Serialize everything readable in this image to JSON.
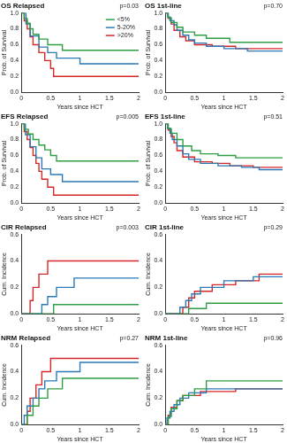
{
  "chart_data": [
    {
      "type": "step",
      "title": "OS Relapsed",
      "annotation": "p=0.03",
      "x_label": "Years since HCT",
      "y_label": "Prob. of Survival",
      "xlim": [
        0,
        2
      ],
      "xticks": [
        0,
        0.5,
        1,
        1.5,
        2
      ],
      "ylim": [
        0,
        1
      ],
      "yticks": [
        {
          "value": 0,
          "label": "0.0"
        },
        {
          "value": 0.2,
          "label": "0.2"
        },
        {
          "value": 0.4,
          "label": "0.4"
        },
        {
          "value": 0.6,
          "label": "0.6"
        },
        {
          "value": 0.8,
          "label": "0.8"
        },
        {
          "value": 1,
          "label": "1.0"
        }
      ],
      "legend": "upper right",
      "series": [
        {
          "name": "<5%",
          "color": "#2e9e44",
          "x": [
            0,
            0.05,
            0.1,
            0.15,
            0.2,
            0.3,
            0.45,
            0.7,
            2
          ],
          "values": [
            1,
            0.93,
            0.87,
            0.8,
            0.73,
            0.67,
            0.6,
            0.53,
            0.53
          ]
        },
        {
          "name": "5-20%",
          "color": "#2a7ab8",
          "x": [
            0,
            0.08,
            0.15,
            0.3,
            0.45,
            0.6,
            1.0,
            2
          ],
          "values": [
            1,
            0.86,
            0.71,
            0.57,
            0.5,
            0.43,
            0.36,
            0.36
          ]
        },
        {
          "name": ">20%",
          "color": "#d62728",
          "x": [
            0,
            0.05,
            0.1,
            0.15,
            0.2,
            0.3,
            0.4,
            0.5,
            0.55,
            2
          ],
          "values": [
            1,
            0.9,
            0.8,
            0.7,
            0.6,
            0.5,
            0.4,
            0.3,
            0.2,
            0.2
          ]
        }
      ]
    },
    {
      "type": "step",
      "title": "OS 1st-line",
      "annotation": "p=0.70",
      "x_label": "Years since HCT",
      "y_label": "Prob. of Survival",
      "xlim": [
        0,
        2
      ],
      "xticks": [
        0,
        0.5,
        1,
        1.5,
        2
      ],
      "ylim": [
        0,
        1
      ],
      "yticks": [
        {
          "value": 0,
          "label": "0.0"
        },
        {
          "value": 0.2,
          "label": "0.2"
        },
        {
          "value": 0.4,
          "label": "0.4"
        },
        {
          "value": 0.6,
          "label": "0.6"
        },
        {
          "value": 0.8,
          "label": "0.8"
        },
        {
          "value": 1,
          "label": "1.0"
        }
      ],
      "series": [
        {
          "name": "<5%",
          "color": "#2e9e44",
          "x": [
            0,
            0.05,
            0.1,
            0.2,
            0.3,
            0.5,
            0.7,
            1.1,
            2
          ],
          "values": [
            1,
            0.94,
            0.88,
            0.82,
            0.76,
            0.72,
            0.68,
            0.63,
            0.63
          ]
        },
        {
          "name": "5-20%",
          "color": "#2a7ab8",
          "x": [
            0,
            0.04,
            0.08,
            0.15,
            0.2,
            0.3,
            0.4,
            0.5,
            0.7,
            1,
            1.4,
            2
          ],
          "values": [
            1,
            0.95,
            0.9,
            0.85,
            0.78,
            0.72,
            0.66,
            0.62,
            0.58,
            0.55,
            0.52,
            0.52
          ]
        },
        {
          "name": ">20%",
          "color": "#d62728",
          "x": [
            0,
            0.05,
            0.1,
            0.15,
            0.25,
            0.35,
            0.5,
            0.8,
            1.2,
            2
          ],
          "values": [
            1,
            0.93,
            0.86,
            0.78,
            0.7,
            0.65,
            0.6,
            0.58,
            0.55,
            0.55
          ]
        }
      ]
    },
    {
      "type": "step",
      "title": "EFS Relapsed",
      "annotation": "p=0.005",
      "x_label": "Years since HCT",
      "y_label": "Prob. of Survival",
      "xlim": [
        0,
        2
      ],
      "xticks": [
        0,
        0.5,
        1,
        1.5,
        2
      ],
      "ylim": [
        0,
        1
      ],
      "yticks": [
        {
          "value": 0,
          "label": "0.0"
        },
        {
          "value": 0.2,
          "label": "0.2"
        },
        {
          "value": 0.4,
          "label": "0.4"
        },
        {
          "value": 0.6,
          "label": "0.6"
        },
        {
          "value": 0.8,
          "label": "0.8"
        },
        {
          "value": 1,
          "label": "1.0"
        }
      ],
      "series": [
        {
          "name": "<5%",
          "color": "#2e9e44",
          "x": [
            0,
            0.05,
            0.12,
            0.2,
            0.3,
            0.4,
            0.5,
            0.6,
            2
          ],
          "values": [
            1,
            0.93,
            0.87,
            0.8,
            0.73,
            0.67,
            0.6,
            0.53,
            0.53
          ]
        },
        {
          "name": "5-20%",
          "color": "#2a7ab8",
          "x": [
            0,
            0.07,
            0.15,
            0.25,
            0.35,
            0.5,
            0.7,
            2
          ],
          "values": [
            1,
            0.86,
            0.71,
            0.57,
            0.43,
            0.36,
            0.27,
            0.27
          ]
        },
        {
          "name": ">20%",
          "color": "#d62728",
          "x": [
            0,
            0.05,
            0.1,
            0.15,
            0.2,
            0.25,
            0.3,
            0.35,
            0.45,
            0.55,
            2
          ],
          "values": [
            1,
            0.9,
            0.8,
            0.7,
            0.6,
            0.5,
            0.4,
            0.3,
            0.2,
            0.1,
            0.1
          ]
        }
      ]
    },
    {
      "type": "step",
      "title": "EFS 1st-line",
      "annotation": "p=0.51",
      "x_label": "Years since HCT",
      "y_label": "Prob. of Survival",
      "xlim": [
        0,
        2
      ],
      "xticks": [
        0,
        0.5,
        1,
        1.5,
        2
      ],
      "ylim": [
        0,
        1
      ],
      "yticks": [
        {
          "value": 0,
          "label": "0.0"
        },
        {
          "value": 0.2,
          "label": "0.2"
        },
        {
          "value": 0.4,
          "label": "0.4"
        },
        {
          "value": 0.6,
          "label": "0.6"
        },
        {
          "value": 0.8,
          "label": "0.8"
        },
        {
          "value": 1,
          "label": "1.0"
        }
      ],
      "series": [
        {
          "name": "<5%",
          "color": "#2e9e44",
          "x": [
            0,
            0.05,
            0.1,
            0.2,
            0.3,
            0.45,
            0.6,
            0.9,
            1.2,
            2
          ],
          "values": [
            1,
            0.94,
            0.88,
            0.8,
            0.72,
            0.66,
            0.62,
            0.6,
            0.57,
            0.57
          ]
        },
        {
          "name": "5-20%",
          "color": "#2a7ab8",
          "x": [
            0,
            0.04,
            0.08,
            0.12,
            0.2,
            0.3,
            0.4,
            0.6,
            0.9,
            1.3,
            1.6,
            2
          ],
          "values": [
            1,
            0.94,
            0.88,
            0.8,
            0.72,
            0.62,
            0.55,
            0.5,
            0.47,
            0.45,
            0.42,
            0.42
          ]
        },
        {
          "name": ">20%",
          "color": "#d62728",
          "x": [
            0,
            0.05,
            0.1,
            0.15,
            0.2,
            0.3,
            0.5,
            0.8,
            1.1,
            1.5,
            2
          ],
          "values": [
            1,
            0.92,
            0.84,
            0.76,
            0.66,
            0.58,
            0.52,
            0.5,
            0.47,
            0.45,
            0.45
          ]
        }
      ]
    },
    {
      "type": "step",
      "title": "CIR Relapsed",
      "annotation": "p=0.003",
      "x_label": "Years since HCT",
      "y_label": "Cum. Incidence",
      "xlim": [
        0,
        2
      ],
      "xticks": [
        0,
        0.5,
        1,
        1.5,
        2
      ],
      "ylim": [
        0,
        0.6
      ],
      "yticks": [
        {
          "value": 0,
          "label": "0.0"
        },
        {
          "value": 0.2,
          "label": "0.2"
        },
        {
          "value": 0.4,
          "label": "0.4"
        },
        {
          "value": 0.6,
          "label": "0.6"
        }
      ],
      "series": [
        {
          "name": "<5%",
          "color": "#2e9e44",
          "x": [
            0,
            0.55,
            2
          ],
          "values": [
            0,
            0.07,
            0.07
          ]
        },
        {
          "name": "5-20%",
          "color": "#2a7ab8",
          "x": [
            0,
            0.35,
            0.45,
            0.6,
            0.9,
            2
          ],
          "values": [
            0,
            0.07,
            0.13,
            0.2,
            0.27,
            0.27
          ]
        },
        {
          "name": ">20%",
          "color": "#d62728",
          "x": [
            0,
            0.15,
            0.2,
            0.3,
            0.45,
            2
          ],
          "values": [
            0,
            0.1,
            0.2,
            0.3,
            0.4,
            0.4
          ]
        }
      ]
    },
    {
      "type": "step",
      "title": "CIR 1st-line",
      "annotation": "p=0.29",
      "x_label": "Years since HCT",
      "y_label": "Cum. Incidence",
      "xlim": [
        0,
        2
      ],
      "xticks": [
        0,
        0.5,
        1,
        1.5,
        2
      ],
      "ylim": [
        0,
        0.6
      ],
      "yticks": [
        {
          "value": 0,
          "label": "0.0"
        },
        {
          "value": 0.2,
          "label": "0.2"
        },
        {
          "value": 0.4,
          "label": "0.4"
        },
        {
          "value": 0.6,
          "label": "0.6"
        }
      ],
      "series": [
        {
          "name": "<5%",
          "color": "#2e9e44",
          "x": [
            0,
            0.4,
            0.7,
            2
          ],
          "values": [
            0,
            0.04,
            0.08,
            0.08
          ]
        },
        {
          "name": "5-20%",
          "color": "#2a7ab8",
          "x": [
            0,
            0.25,
            0.35,
            0.45,
            0.6,
            1,
            1.5,
            2
          ],
          "values": [
            0,
            0.05,
            0.1,
            0.15,
            0.2,
            0.25,
            0.28,
            0.28
          ]
        },
        {
          "name": ">20%",
          "color": "#d62728",
          "x": [
            0,
            0.3,
            0.4,
            0.5,
            0.8,
            1.2,
            1.6,
            2
          ],
          "values": [
            0,
            0.05,
            0.12,
            0.17,
            0.22,
            0.25,
            0.3,
            0.3
          ]
        }
      ]
    },
    {
      "type": "step",
      "title": "NRM Relapsed",
      "annotation": "p=0.27",
      "x_label": "Years since HCT",
      "y_label": "Cum. Incidence",
      "xlim": [
        0,
        2
      ],
      "xticks": [
        0,
        0.5,
        1,
        1.5,
        2
      ],
      "ylim": [
        0,
        0.6
      ],
      "yticks": [
        {
          "value": 0,
          "label": "0.0"
        },
        {
          "value": 0.2,
          "label": "0.2"
        },
        {
          "value": 0.4,
          "label": "0.4"
        },
        {
          "value": 0.6,
          "label": "0.6"
        }
      ],
      "series": [
        {
          "name": "<5%",
          "color": "#2e9e44",
          "x": [
            0,
            0.1,
            0.2,
            0.3,
            0.45,
            0.7,
            2
          ],
          "values": [
            0,
            0.07,
            0.14,
            0.2,
            0.27,
            0.35,
            0.35
          ]
        },
        {
          "name": "5-20%",
          "color": "#2a7ab8",
          "x": [
            0,
            0.05,
            0.1,
            0.2,
            0.3,
            0.4,
            0.6,
            1,
            2
          ],
          "values": [
            0,
            0.07,
            0.14,
            0.2,
            0.27,
            0.33,
            0.4,
            0.47,
            0.47
          ]
        },
        {
          "name": ">20%",
          "color": "#d62728",
          "x": [
            0,
            0.1,
            0.15,
            0.25,
            0.35,
            0.5,
            2
          ],
          "values": [
            0,
            0.1,
            0.2,
            0.3,
            0.4,
            0.5,
            0.5
          ]
        }
      ]
    },
    {
      "type": "step",
      "title": "NRM 1st-line",
      "annotation": "p=0.96",
      "x_label": "Years since HCT",
      "y_label": "Cum. Incidence",
      "xlim": [
        0,
        2
      ],
      "xticks": [
        0,
        0.5,
        1,
        1.5,
        2
      ],
      "ylim": [
        0,
        0.6
      ],
      "yticks": [
        {
          "value": 0,
          "label": "0.0"
        },
        {
          "value": 0.2,
          "label": "0.2"
        },
        {
          "value": 0.4,
          "label": "0.4"
        },
        {
          "value": 0.6,
          "label": "0.6"
        }
      ],
      "series": [
        {
          "name": "<5%",
          "color": "#2e9e44",
          "x": [
            0,
            0.05,
            0.1,
            0.2,
            0.3,
            0.5,
            0.7,
            2
          ],
          "values": [
            0,
            0.06,
            0.12,
            0.18,
            0.22,
            0.27,
            0.33,
            0.33
          ]
        },
        {
          "name": "5-20%",
          "color": "#2a7ab8",
          "x": [
            0,
            0.03,
            0.08,
            0.15,
            0.25,
            0.4,
            0.7,
            2
          ],
          "values": [
            0,
            0.05,
            0.1,
            0.15,
            0.2,
            0.24,
            0.27,
            0.27
          ]
        },
        {
          "name": ">20%",
          "color": "#d62728",
          "x": [
            0,
            0.05,
            0.1,
            0.2,
            0.3,
            0.6,
            1.2,
            2
          ],
          "values": [
            0,
            0.07,
            0.13,
            0.18,
            0.22,
            0.25,
            0.27,
            0.27
          ]
        }
      ]
    }
  ]
}
